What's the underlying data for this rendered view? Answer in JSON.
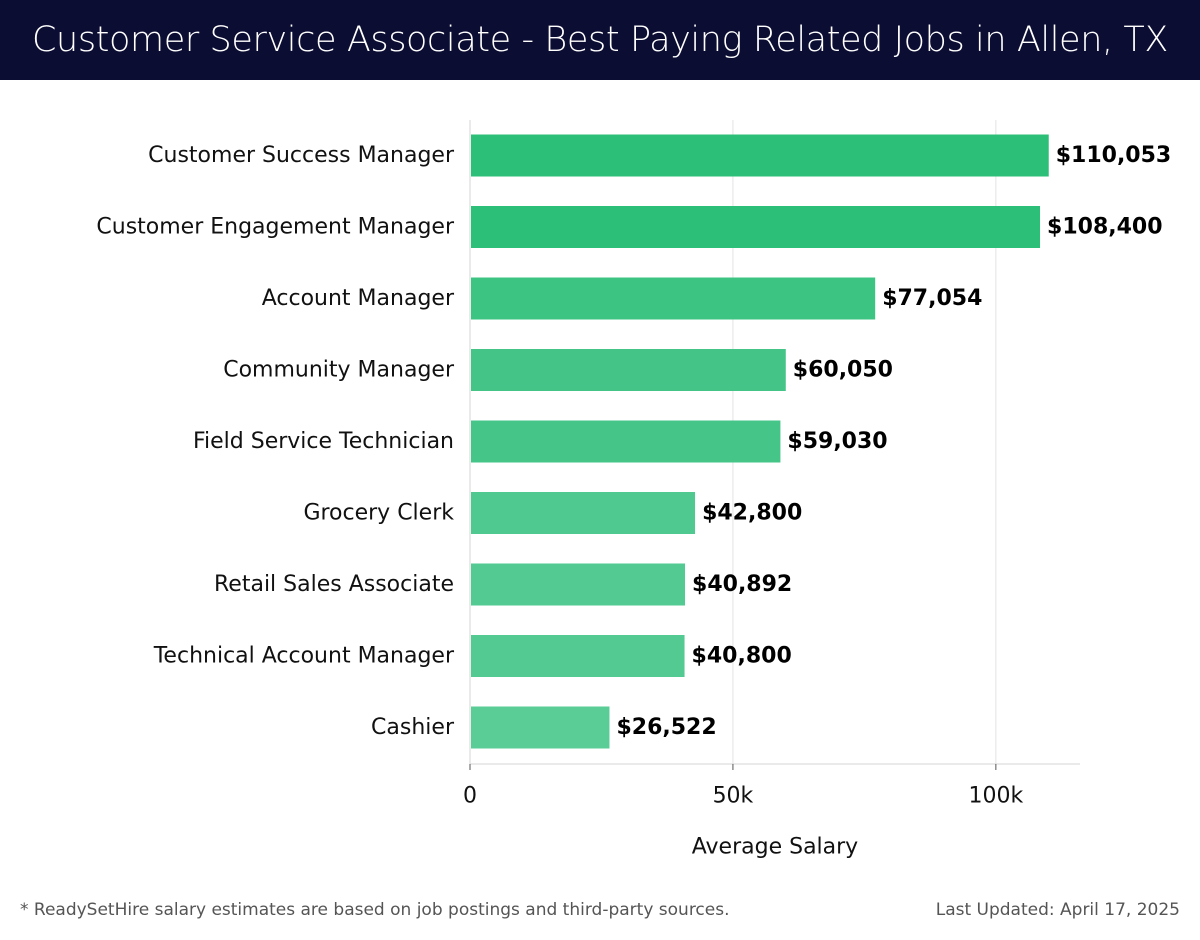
{
  "header": {
    "title": "Customer Service Associate - Best Paying Related Jobs in Allen, TX"
  },
  "chart_data": {
    "type": "bar",
    "orientation": "horizontal",
    "title": "Customer Service Associate - Best Paying Related Jobs in Allen, TX",
    "xlabel": "Average Salary",
    "ylabel": "",
    "xlim": [
      0,
      116000
    ],
    "xticks": [
      0,
      50000,
      100000
    ],
    "xtick_labels": [
      "0",
      "50k",
      "100k"
    ],
    "grid": true,
    "categories": [
      "Customer Success Manager",
      "Customer Engagement Manager",
      "Account Manager",
      "Community Manager",
      "Field Service Technician",
      "Grocery Clerk",
      "Retail Sales Associate",
      "Technical Account Manager",
      "Cashier"
    ],
    "values": [
      110053,
      108400,
      77054,
      60050,
      59030,
      42800,
      40892,
      40800,
      26522
    ],
    "value_labels": [
      "$110,053",
      "$108,400",
      "$77,054",
      "$60,050",
      "$59,030",
      "$42,800",
      "$40,892",
      "$40,800",
      "$26,522"
    ],
    "colors": [
      "#2bbf77",
      "#2cbf78",
      "#3cc483",
      "#44c487",
      "#46c589",
      "#4fc98f",
      "#52ca91",
      "#53ca91",
      "#5acd96"
    ]
  },
  "footer": {
    "note": "* ReadySetHire salary estimates are based on job postings and third-party sources.",
    "updated": "Last Updated: April 17, 2025"
  }
}
